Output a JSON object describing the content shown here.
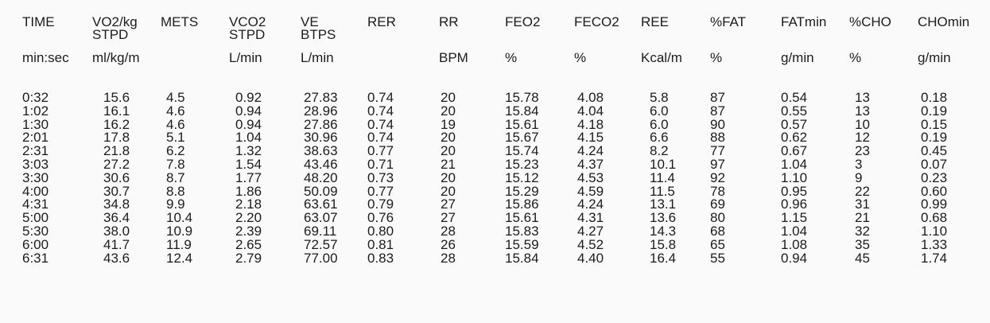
{
  "headers": [
    {
      "name": "TIME",
      "sub": "",
      "unit": "min:sec"
    },
    {
      "name": "VO2/kg",
      "sub": "STPD",
      "unit": "ml/kg/m"
    },
    {
      "name": "METS",
      "sub": "",
      "unit": ""
    },
    {
      "name": "VCO2",
      "sub": "STPD",
      "unit": "L/min"
    },
    {
      "name": "VE",
      "sub": "BTPS",
      "unit": "L/min"
    },
    {
      "name": "RER",
      "sub": "",
      "unit": ""
    },
    {
      "name": "RR",
      "sub": "",
      "unit": "BPM"
    },
    {
      "name": "FEO2",
      "sub": "",
      "unit": "%"
    },
    {
      "name": "FECO2",
      "sub": "",
      "unit": "%"
    },
    {
      "name": "REE",
      "sub": "",
      "unit": "Kcal/m"
    },
    {
      "name": "%FAT",
      "sub": "",
      "unit": "%"
    },
    {
      "name": "FATmin",
      "sub": "",
      "unit": "g/min"
    },
    {
      "name": "%CHO",
      "sub": "",
      "unit": "%"
    },
    {
      "name": "CHOmin",
      "sub": "",
      "unit": "g/min"
    }
  ],
  "rows": [
    [
      "0:32",
      "15.6",
      "4.5",
      "0.92",
      "27.83",
      "0.74",
      "20",
      "15.78",
      "4.08",
      "5.8",
      "87",
      "0.54",
      "13",
      "0.18"
    ],
    [
      "1:02",
      "16.1",
      "4.6",
      "0.94",
      "28.96",
      "0.74",
      "20",
      "15.84",
      "4.04",
      "6.0",
      "87",
      "0.55",
      "13",
      "0.19"
    ],
    [
      "1:30",
      "16.2",
      "4.6",
      "0.94",
      "27.86",
      "0.74",
      "19",
      "15.61",
      "4.18",
      "6.0",
      "90",
      "0.57",
      "10",
      "0.15"
    ],
    [
      "2:01",
      "17.8",
      "5.1",
      "1.04",
      "30.96",
      "0.74",
      "20",
      "15.67",
      "4.15",
      "6.6",
      "88",
      "0.62",
      "12",
      "0.19"
    ],
    [
      "2:31",
      "21.8",
      "6.2",
      "1.32",
      "38.63",
      "0.77",
      "20",
      "15.74",
      "4.24",
      "8.2",
      "77",
      "0.67",
      "23",
      "0.45"
    ],
    [
      "3:03",
      "27.2",
      "7.8",
      "1.54",
      "43.46",
      "0.71",
      "21",
      "15.23",
      "4.37",
      "10.1",
      "97",
      "1.04",
      "3",
      "0.07"
    ],
    [
      "3:30",
      "30.6",
      "8.7",
      "1.77",
      "48.20",
      "0.73",
      "20",
      "15.12",
      "4.53",
      "11.4",
      "92",
      "1.10",
      "9",
      "0.23"
    ],
    [
      "4:00",
      "30.7",
      "8.8",
      "1.86",
      "50.09",
      "0.77",
      "20",
      "15.29",
      "4.59",
      "11.5",
      "78",
      "0.95",
      "22",
      "0.60"
    ],
    [
      "4:31",
      "34.8",
      "9.9",
      "2.18",
      "63.61",
      "0.79",
      "27",
      "15.86",
      "4.24",
      "13.1",
      "69",
      "0.96",
      "31",
      "0.99"
    ],
    [
      "5:00",
      "36.4",
      "10.4",
      "2.20",
      "63.07",
      "0.76",
      "27",
      "15.61",
      "4.31",
      "13.6",
      "80",
      "1.15",
      "21",
      "0.68"
    ],
    [
      "5:30",
      "38.0",
      "10.9",
      "2.39",
      "69.11",
      "0.80",
      "28",
      "15.83",
      "4.27",
      "14.3",
      "68",
      "1.04",
      "32",
      "1.10"
    ],
    [
      "6:00",
      "41.7",
      "11.9",
      "2.65",
      "72.57",
      "0.81",
      "26",
      "15.59",
      "4.52",
      "15.8",
      "65",
      "1.08",
      "35",
      "1.33"
    ],
    [
      "6:31",
      "43.6",
      "12.4",
      "2.79",
      "77.00",
      "0.83",
      "28",
      "15.84",
      "4.40",
      "16.4",
      "55",
      "0.94",
      "45",
      "1.74"
    ]
  ]
}
